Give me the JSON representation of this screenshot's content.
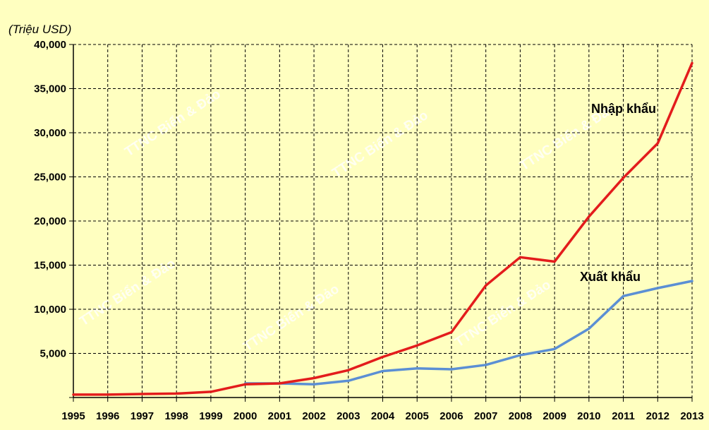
{
  "chart_data": {
    "type": "line",
    "unit_label": "(Triệu USD)",
    "x": [
      "1995",
      "1996",
      "1997",
      "1998",
      "1999",
      "2000",
      "2001",
      "2002",
      "2003",
      "2004",
      "2005",
      "2006",
      "2007",
      "2008",
      "2009",
      "2010",
      "2011",
      "2012",
      "2013"
    ],
    "ylim": [
      0,
      40000
    ],
    "yticks": [
      0,
      5000,
      10000,
      15000,
      20000,
      25000,
      30000,
      35000,
      40000
    ],
    "ytick_labels": [
      "",
      "5,000",
      "10,000",
      "15,000",
      "20,000",
      "25,000",
      "30,000",
      "35,000",
      "40,000"
    ],
    "grid": true,
    "series": [
      {
        "name": "Nhập khẩu",
        "color": "#e31c1c",
        "values": [
          330,
          330,
          400,
          450,
          650,
          1500,
          1600,
          2200,
          3100,
          4600,
          5900,
          7400,
          12700,
          15900,
          15400,
          20500,
          24900,
          28800,
          37900
        ]
      },
      {
        "name": "Xuất khẩu",
        "color": "#5b8fd4",
        "values": [
          null,
          null,
          null,
          null,
          null,
          1600,
          1600,
          1500,
          1900,
          3000,
          3300,
          3200,
          3700,
          4800,
          5500,
          7800,
          11500,
          12400,
          13200
        ]
      }
    ]
  },
  "watermarks": [
    "TTNC Biển & Đảo",
    "TTNC Biển & Đảo",
    "TTNC Biển & Đảo",
    "TTNC Biển & Đảo",
    "TTNC Biển & Đảo",
    "TTNC Biển & Đảo"
  ]
}
